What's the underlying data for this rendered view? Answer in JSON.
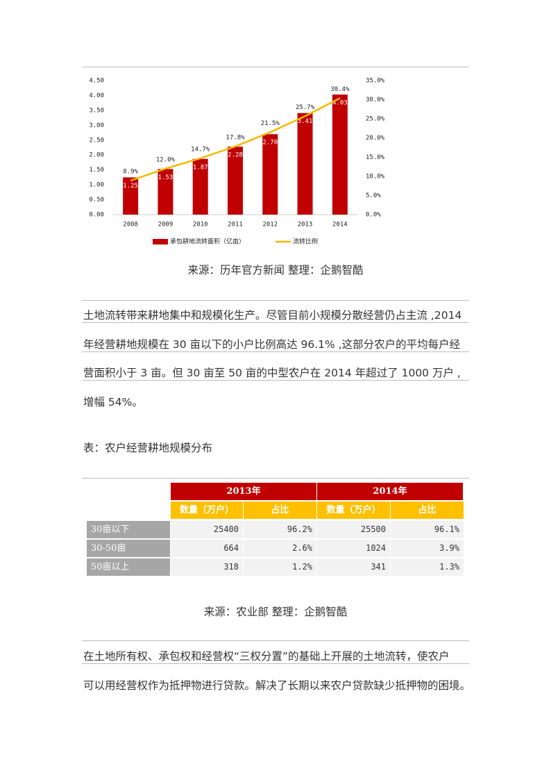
{
  "chart_data": {
    "type": "bar",
    "categories": [
      "2008",
      "2009",
      "2010",
      "2011",
      "2012",
      "2013",
      "2014"
    ],
    "series": [
      {
        "name": "承包耕地流转面积（亿亩）",
        "color": "#c00000",
        "type": "bar",
        "values": [
          1.25,
          1.53,
          1.87,
          2.28,
          2.7,
          3.41,
          4.03
        ],
        "value_labels": [
          "1.25",
          "1.53",
          "1.87",
          "2.28",
          "2.70",
          "3.41",
          "4.03"
        ]
      },
      {
        "name": "流转比例",
        "color": "#f5b800",
        "type": "line",
        "axis": "y2",
        "values": [
          8.9,
          12.0,
          14.7,
          17.8,
          21.5,
          25.7,
          30.4
        ],
        "value_labels": [
          "8.9%",
          "12.0%",
          "14.7%",
          "17.8%",
          "21.5%",
          "25.7%",
          "30.4%"
        ]
      }
    ],
    "ylim": [
      0,
      4.5
    ],
    "yticks": [
      {
        "value": 0,
        "label": "0.00"
      },
      {
        "value": 0.5,
        "label": "0.50"
      },
      {
        "value": 1,
        "label": "1.00"
      },
      {
        "value": 1.5,
        "label": "1.50"
      },
      {
        "value": 2,
        "label": "2.00"
      },
      {
        "value": 2.5,
        "label": "2.50"
      },
      {
        "value": 3,
        "label": "3.00"
      },
      {
        "value": 3.5,
        "label": "3.50"
      },
      {
        "value": 4,
        "label": "4.00"
      },
      {
        "value": 4.5,
        "label": "4.50"
      }
    ],
    "y2lim": [
      0,
      35
    ],
    "y2ticks": [
      {
        "value": 0,
        "label": "0.0%"
      },
      {
        "value": 5,
        "label": "5.0%"
      },
      {
        "value": 10,
        "label": "10.0%"
      },
      {
        "value": 15,
        "label": "15.0%"
      },
      {
        "value": 20,
        "label": "20.0%"
      },
      {
        "value": 25,
        "label": "25.0%"
      },
      {
        "value": 30,
        "label": "30.0%"
      },
      {
        "value": 35,
        "label": "35.0%"
      }
    ],
    "legend": "bottom"
  },
  "source1": "来源：历年官方新闻 整理：企鹅智酷",
  "paragraph1": [
    "土地流转带来耕地集中和规模化生产。尽管目前小规模分散经营仍占主流 ,2014",
    "年经营耕地规模在 30 亩以下的小户比例高达 96.1% ,这部分农户的平均每户经",
    "营面积小于 3 亩。但 30 亩至 50 亩的中型农户在 2014 年超过了 1000 万户 ,",
    "增幅 54%。"
  ],
  "table_caption": "表：农户经营耕地规模分布",
  "table": {
    "years": [
      "2013年",
      "2014年"
    ],
    "columns": [
      "数量（万户）",
      "占比",
      "数量（万户）",
      "占比"
    ],
    "rows": [
      [
        "30亩以下",
        "25400",
        "96.2%",
        "25500",
        "96.1%"
      ],
      [
        "30-50亩",
        "664",
        "2.6%",
        "1024",
        "3.9%"
      ],
      [
        "50亩以上",
        "318",
        "1.2%",
        "341",
        "1.3%"
      ]
    ]
  },
  "source2": "来源：农业部 整理：企鹅智酷",
  "paragraph2": [
    "在土地所有权、承包权和经营权“三权分置”的基础上开展的土地流转，使农户",
    "可以用经营权作为抵押物进行贷款。解决了长期以来农户贷款缺少抵押物的困境。"
  ]
}
